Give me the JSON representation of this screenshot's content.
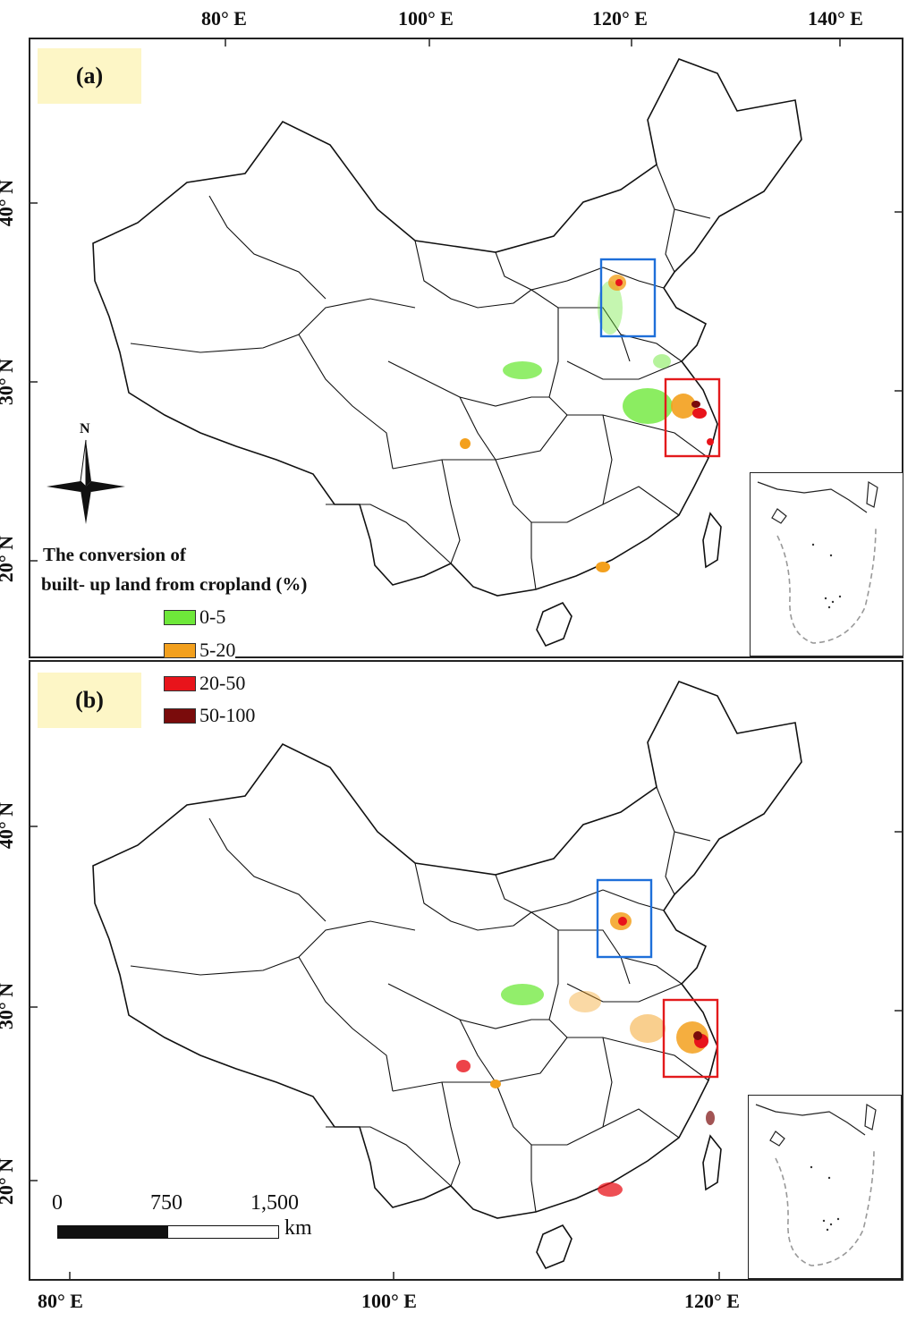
{
  "lon_labels_top": [
    "80° E",
    "100° E",
    "120° E",
    "140° E"
  ],
  "lon_labels_bottom": [
    "80° E",
    "100° E",
    "120° E"
  ],
  "lat_labels": [
    "40° N",
    "30° N",
    "20° N"
  ],
  "panel_a": {
    "label": "(a)"
  },
  "panel_b": {
    "label": "(b)"
  },
  "north_arrow": {
    "label": "N",
    "icon": "north-arrow-icon"
  },
  "legend": {
    "title_line1": "The conversion of",
    "title_line2": "built- up land from cropland (%)",
    "items": [
      {
        "label": "0-5",
        "color": "#6ee83a"
      },
      {
        "label": "5-20",
        "color": "#f3a01d"
      },
      {
        "label": "20-50",
        "color": "#e8141b"
      },
      {
        "label": "50-100",
        "color": "#7a0b0b"
      }
    ]
  },
  "scale_bar": {
    "ticks": [
      "0",
      "750",
      "1,500"
    ],
    "unit": "km"
  },
  "highlight_colors": {
    "north_box": "#1e6fd9",
    "east_box": "#e31a1c"
  }
}
